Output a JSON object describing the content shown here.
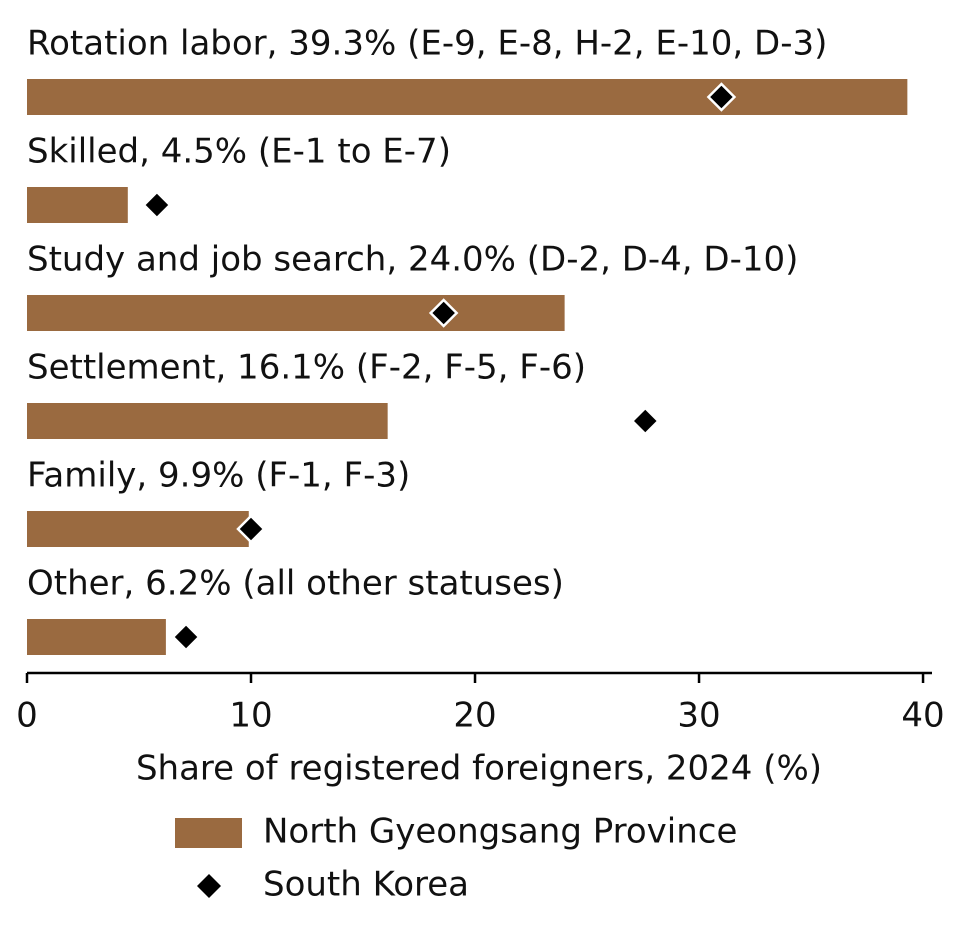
{
  "chart_data": {
    "type": "bar",
    "orientation": "horizontal",
    "categories": [
      "Rotation labor, 39.3% (E-9, E-8, H-2, E-10, D-3)",
      "Skilled, 4.5% (E-1 to E-7)",
      "Study and job search, 24.0% (D-2, D-4, D-10)",
      "Settlement, 16.1% (F-2, F-5, F-6)",
      "Family, 9.9% (F-1, F-3)",
      "Other, 6.2% (all other statuses)"
    ],
    "series": [
      {
        "name": "North Gyeongsang Province",
        "color": "#9a6a40",
        "values": [
          39.3,
          4.5,
          24.0,
          16.1,
          9.9,
          6.2
        ]
      },
      {
        "name": "South Korea",
        "color": "#000000",
        "marker": "diamond",
        "values": [
          31.0,
          5.8,
          18.6,
          27.6,
          10.0,
          7.1
        ]
      }
    ],
    "xlabel": "Share of registered foreigners, 2024 (%)",
    "xlim": [
      0,
      40.4
    ],
    "xticks": [
      0,
      10,
      20,
      30,
      40
    ],
    "legend": "bottom"
  }
}
